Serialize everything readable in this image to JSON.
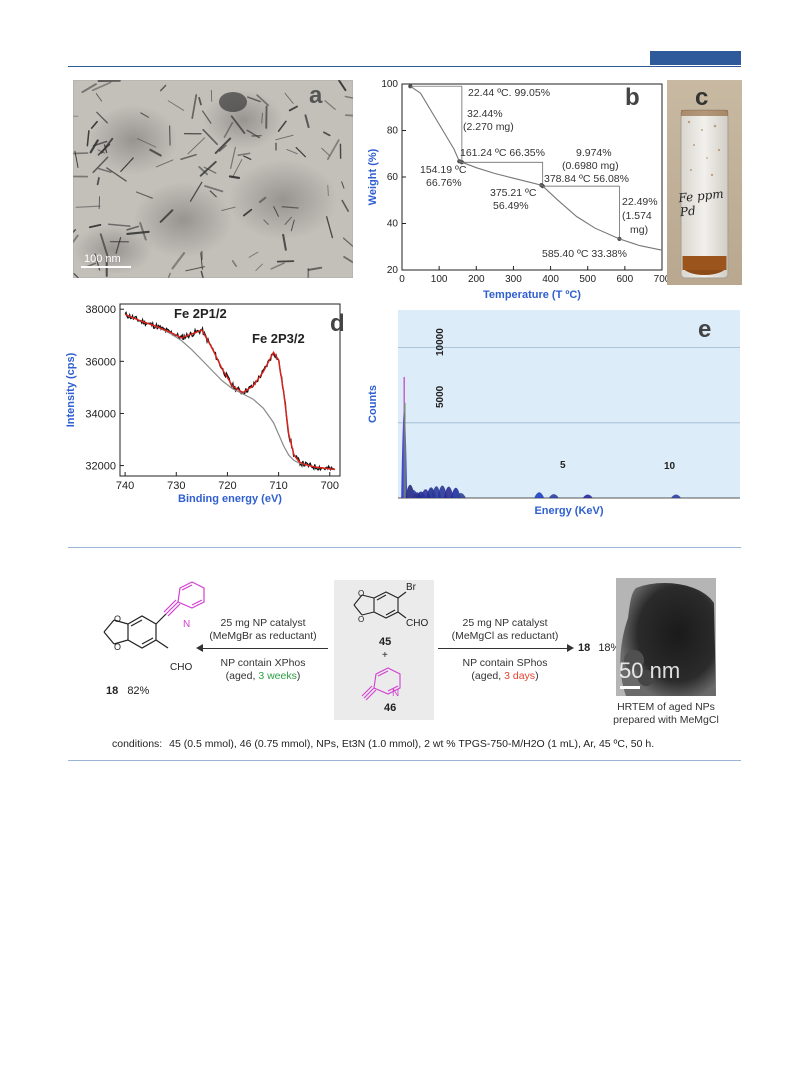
{
  "colors": {
    "header_accent": "#2e5a9c",
    "axis_blue": "#2f5fd0",
    "xps_fit_red": "#e0201a",
    "pyridine_magenta": "#d23fd2",
    "weeks_green": "#2ea043",
    "days_red": "#e8422f",
    "eds_background": "#dcecf8"
  },
  "panel_a": {
    "letter": "a",
    "scale_bar": "100 nm"
  },
  "panel_b": {
    "letter": "b",
    "annotations": {
      "t1": "22.44 ºC.  99.05%",
      "loss1_pct": "32.44%",
      "loss1_mg": "(2.270 mg)",
      "t2": "161.24 ºC  66.35%",
      "t3_temp": "154.19 ºC",
      "t3_pct": "66.76%",
      "loss2_pct": "9.974%",
      "loss2_mg": "(0.6980 mg)",
      "t4": "378.84 ºC  56.08%",
      "t5_temp": "375.21 ºC",
      "t5_pct": "56.49%",
      "loss3_pct": "22.49%",
      "loss3_mg1": "(1.574",
      "loss3_mg2": "mg)",
      "t6": "585.40 ºC  33.38%"
    }
  },
  "panel_c": {
    "letter": "c",
    "vial_label": "Fe ppm Pd"
  },
  "panel_d": {
    "letter": "d",
    "peak1": "Fe 2P1/2",
    "peak2": "Fe 2P3/2"
  },
  "panel_e": {
    "letter": "e",
    "label_10000": "10000",
    "label_5000": "5000",
    "label_5": "5",
    "label_10": "10"
  },
  "chart_data": [
    {
      "type": "line",
      "xlabel": "Temperature (T ºC)",
      "ylabel": "Weight (%)",
      "xlim": [
        0,
        700
      ],
      "ylim": [
        20,
        100
      ],
      "x_ticks": [
        0,
        100,
        200,
        300,
        400,
        500,
        600,
        700
      ],
      "y_ticks": [
        20,
        40,
        60,
        80,
        100
      ],
      "x": [
        22.44,
        50,
        80,
        110,
        140,
        154.19,
        161.24,
        200,
        250,
        300,
        350,
        375.21,
        378.84,
        420,
        470,
        520,
        585.4,
        640,
        700
      ],
      "y": [
        99.05,
        96,
        88,
        80,
        72,
        66.76,
        66.35,
        64,
        61.5,
        59.5,
        57.5,
        56.49,
        56.08,
        50,
        43,
        38,
        33.38,
        30.5,
        28.5
      ]
    },
    {
      "type": "line",
      "xlabel": "Binding energy (eV)",
      "ylabel": "Intensity (cps)",
      "xlim": [
        741,
        698
      ],
      "ylim": [
        31600,
        38200
      ],
      "x_ticks": [
        740,
        730,
        720,
        710,
        700
      ],
      "y_ticks": [
        32000,
        34000,
        36000,
        38000
      ],
      "series": [
        {
          "x": [
            740,
            737,
            734,
            731,
            729,
            727,
            725,
            723,
            721,
            719,
            717,
            715,
            713,
            711,
            710,
            709,
            708,
            707,
            706,
            705,
            703,
            701,
            699
          ],
          "y": [
            37800,
            37550,
            37350,
            37100,
            36900,
            37050,
            37200,
            36500,
            35700,
            35050,
            34800,
            35050,
            35600,
            36350,
            36050,
            34800,
            33200,
            32400,
            32150,
            32050,
            31950,
            31900,
            31850
          ]
        },
        {
          "x": [
            740,
            737,
            734,
            731,
            729,
            727,
            725,
            723,
            721,
            719,
            717,
            715,
            713,
            711,
            710,
            709,
            708,
            707,
            706,
            705,
            703,
            701,
            699
          ],
          "y": [
            37800,
            37550,
            37350,
            37050,
            36800,
            36450,
            36050,
            35650,
            35250,
            34950,
            34750,
            34550,
            34200,
            33650,
            33200,
            32750,
            32400,
            32200,
            32100,
            32050,
            31950,
            31900,
            31850
          ]
        }
      ]
    },
    {
      "type": "bar",
      "xlabel": "Energy (KeV)",
      "ylabel": "Counts",
      "xlim": [
        0,
        15.5
      ],
      "ylim": [
        0,
        12500
      ],
      "x": [
        0.28,
        0.55,
        0.7,
        0.86,
        1.04,
        1.25,
        1.5,
        1.74,
        2.01,
        2.3,
        2.62,
        2.85,
        6.4,
        7.06,
        8.6,
        12.6
      ],
      "y": [
        11500,
        1500,
        800,
        500,
        600,
        900,
        1150,
        1300,
        1400,
        1250,
        1100,
        400,
        500,
        250,
        200,
        200
      ]
    }
  ],
  "scheme": {
    "left_conditions": {
      "line1": "25 mg NP catalyst",
      "line2": "(MeMgBr as reductant)",
      "line3": "NP contain XPhos",
      "line4_pre": "(aged, ",
      "line4_hl": "3 weeks",
      "line4_post": ")"
    },
    "right_conditions": {
      "line1": "25 mg NP catalyst",
      "line2": "(MeMgCl as reductant)",
      "line3": "NP contain SPhos",
      "line4_pre": "(aged, ",
      "line4_hl": "3 days",
      "line4_post": ")"
    },
    "product_left": {
      "num": "18",
      "yield": "82%"
    },
    "product_right": {
      "num": "18",
      "yield": "18%"
    },
    "reactant_a": "45",
    "plus": "+",
    "reactant_b": "46",
    "atoms": {
      "br": "Br",
      "cho": "CHO",
      "n": "N"
    },
    "hrtem_scale": "50 nm",
    "hrtem_caption_1": "HRTEM of aged NPs",
    "hrtem_caption_2": "prepared with MeMgCl",
    "conditions_label": "conditions:",
    "conditions_text": "45 (0.5 mmol), 46 (0.75 mmol), NPs, Et3N (1.0 mmol),  2 wt % TPGS-750-M/H2O (1 mL), Ar, 45 ºC, 50 h."
  }
}
